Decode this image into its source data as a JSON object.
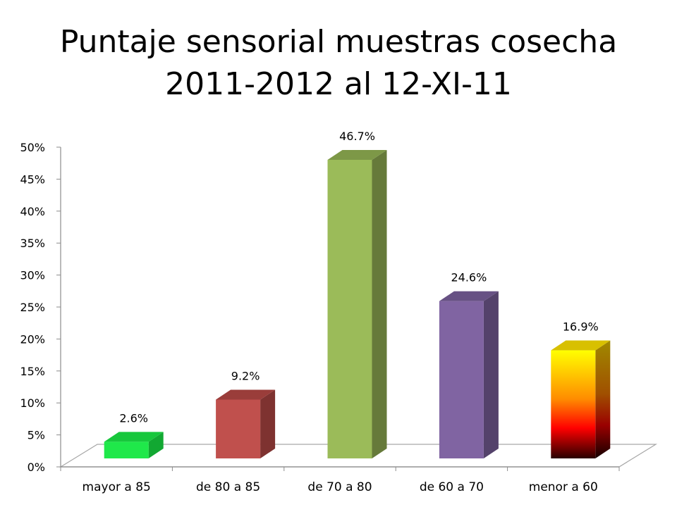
{
  "slide": {
    "title_line1": "Puntaje sensorial muestras cosecha",
    "title_line2": "2011-2012 al 12-XI-11"
  },
  "chart_data": {
    "type": "bar",
    "title": "Puntaje sensorial muestras cosecha 2011-2012 al 12-XI-11",
    "categories": [
      "mayor a 85",
      "de 80 a 85",
      "de 70 a 80",
      "de 60 a 70",
      "menor a 60"
    ],
    "values": [
      2.6,
      9.2,
      46.7,
      24.6,
      16.9
    ],
    "data_labels": [
      "2.6%",
      "9.2%",
      "46.7%",
      "24.6%",
      "16.9%"
    ],
    "y_ticks": [
      "0%",
      "5%",
      "10%",
      "15%",
      "20%",
      "25%",
      "30%",
      "35%",
      "40%",
      "45%",
      "50%"
    ],
    "ylim": [
      0,
      50
    ],
    "xlabel": "",
    "ylabel": "",
    "grid": false,
    "legend": "none",
    "style": "3d-column",
    "colors": [
      {
        "front": "#1fe84a",
        "side": "#12a832",
        "top": "#17c73c"
      },
      {
        "front": "#c0504d",
        "side": "#7e3230",
        "top": "#9a3d3a"
      },
      {
        "front": "#9bbb59",
        "side": "#667a3a",
        "top": "#7d9847"
      },
      {
        "front": "#8064a2",
        "side": "#54426b",
        "top": "#675184"
      },
      {
        "front": "gradient",
        "side": "#6b5a00",
        "top": "#d8c000"
      }
    ]
  }
}
